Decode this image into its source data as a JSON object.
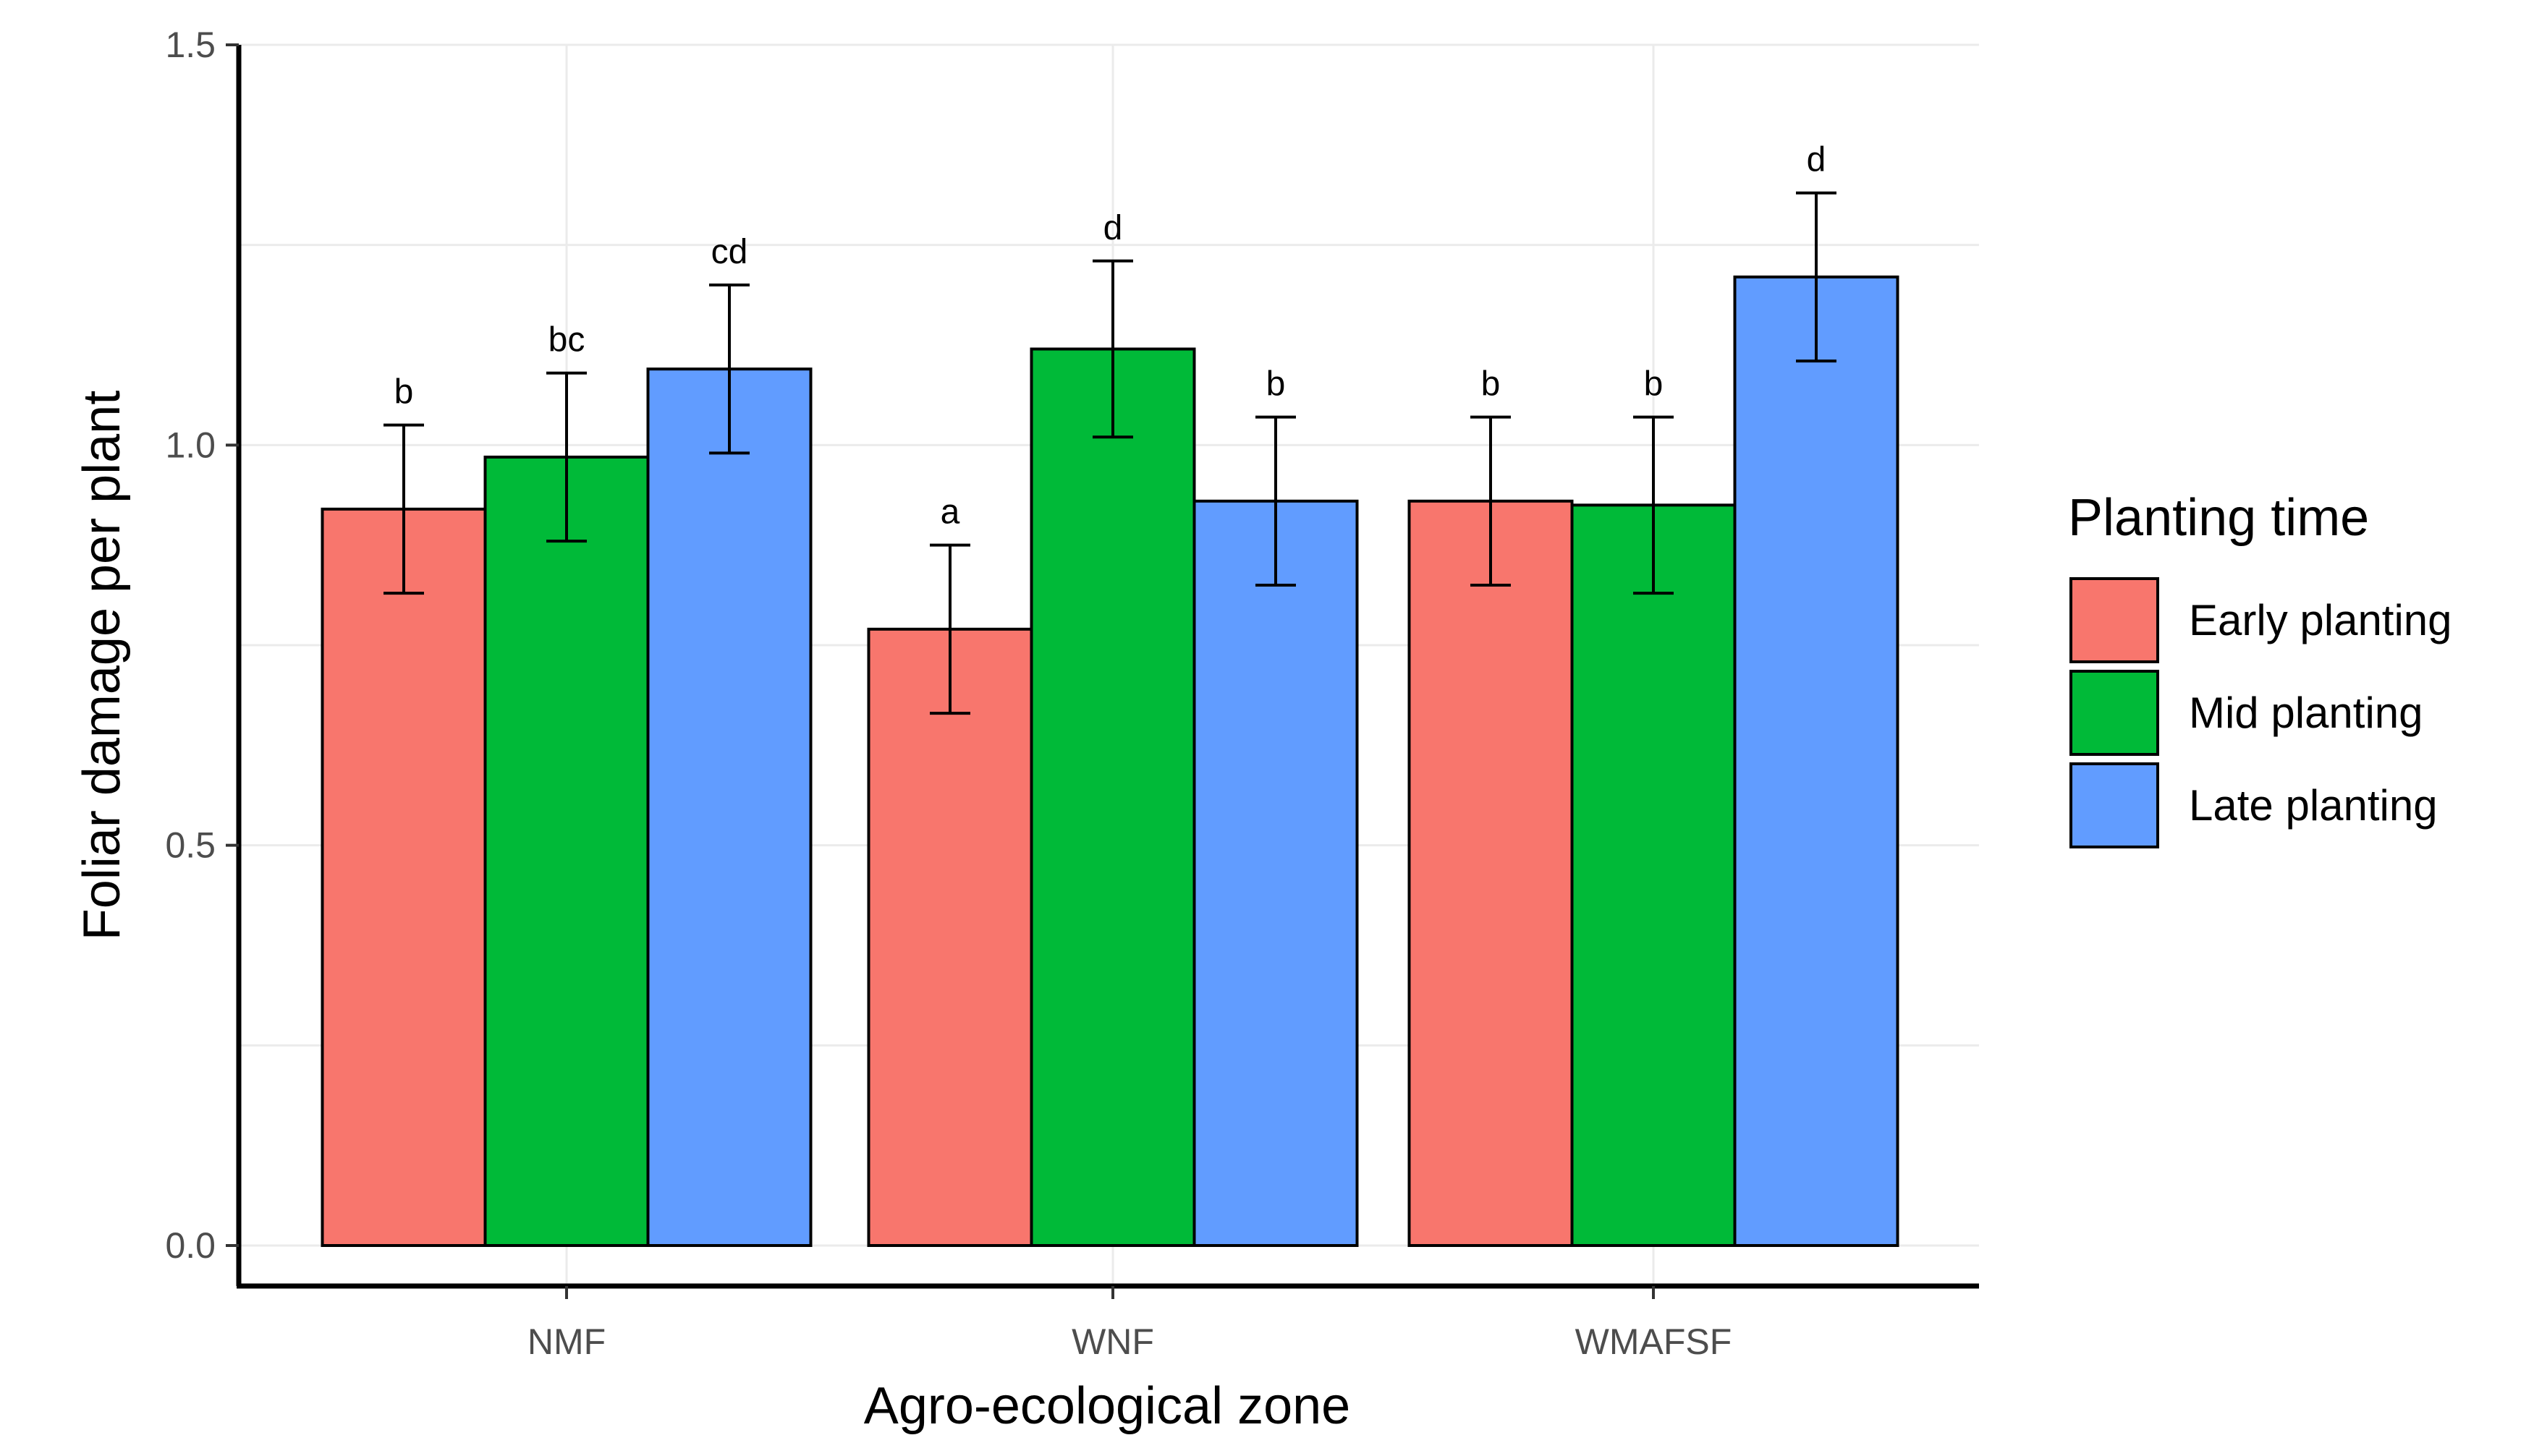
{
  "chart_data": {
    "type": "bar",
    "title": "",
    "xlabel": "Agro-ecological zone",
    "ylabel": "Foliar damage per plant",
    "ylim": [
      0.0,
      1.5
    ],
    "y_ticks": [
      "0.0",
      "0.5",
      "1.0",
      "1.5"
    ],
    "y_tick_values": [
      0.0,
      0.5,
      1.0,
      1.5
    ],
    "grid": true,
    "categories": [
      "NMF",
      "WNF",
      "WMAFSF"
    ],
    "legend": {
      "title": "Planting time",
      "position": "right"
    },
    "series": [
      {
        "name": "Early planting",
        "color": "#F8766D",
        "values": [
          0.92,
          0.77,
          0.93
        ],
        "error": [
          0.105,
          0.105,
          0.105
        ],
        "labels": [
          "b",
          "a",
          "b"
        ]
      },
      {
        "name": "Mid planting",
        "color": "#00BA38",
        "values": [
          0.985,
          1.12,
          0.925
        ],
        "error": [
          0.105,
          0.11,
          0.11
        ],
        "labels": [
          "bc",
          "d",
          "b"
        ]
      },
      {
        "name": "Late planting",
        "color": "#619CFF",
        "values": [
          1.095,
          0.93,
          1.21
        ],
        "error": [
          0.105,
          0.105,
          0.105
        ],
        "labels": [
          "cd",
          "b",
          "d"
        ]
      }
    ]
  }
}
